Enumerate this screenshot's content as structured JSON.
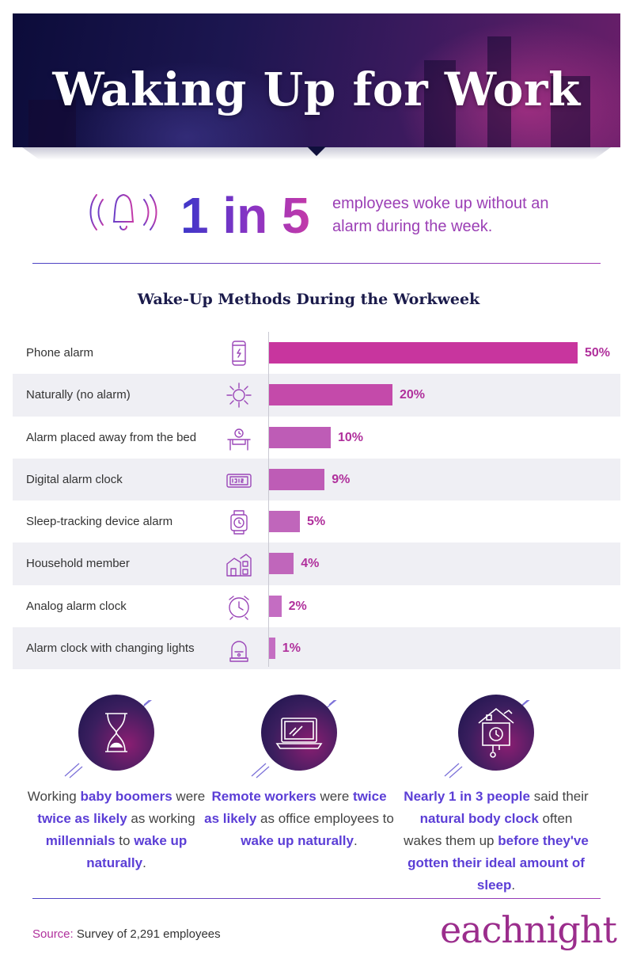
{
  "header": {
    "title": "Waking Up for Work"
  },
  "stat": {
    "big": "1 in 5",
    "text": "employees woke up without an alarm during the week."
  },
  "chart_data": {
    "type": "bar",
    "orientation": "horizontal",
    "title": "Wake-Up Methods During the Workweek",
    "categories": [
      "Phone alarm",
      "Naturally (no alarm)",
      "Alarm placed away from the bed",
      "Digital alarm clock",
      "Sleep-tracking device alarm",
      "Household member",
      "Analog alarm clock",
      "Alarm clock with changing lights"
    ],
    "values": [
      50,
      20,
      10,
      9,
      5,
      4,
      2,
      1
    ],
    "value_labels": [
      "50%",
      "20%",
      "10%",
      "9%",
      "5%",
      "4%",
      "2%",
      "1%"
    ],
    "icons": [
      "phone-icon",
      "sun-icon",
      "desk-alarm-icon",
      "digital-clock-icon",
      "smartwatch-icon",
      "house-icon",
      "analog-clock-icon",
      "light-clock-icon"
    ],
    "colors": [
      "#c8359e",
      "#c44aaa",
      "#be5cb6",
      "#be5cb6",
      "#c066bb",
      "#c066bb",
      "#c46dc2",
      "#c46dc2"
    ],
    "xlim": [
      0,
      50
    ]
  },
  "findings": [
    {
      "parts": [
        {
          "t": "Working ",
          "h": false
        },
        {
          "t": "baby boomers",
          "h": true
        },
        {
          "t": " were ",
          "h": false
        },
        {
          "t": "twice as likely",
          "h": true
        },
        {
          "t": " as working ",
          "h": false
        },
        {
          "t": "millennials",
          "h": true
        },
        {
          "t": " to ",
          "h": false
        },
        {
          "t": "wake up naturally",
          "h": true
        },
        {
          "t": ".",
          "h": false
        }
      ]
    },
    {
      "parts": [
        {
          "t": "Remote workers",
          "h": true
        },
        {
          "t": " were ",
          "h": false
        },
        {
          "t": "twice as likely",
          "h": true
        },
        {
          "t": " as office employees to ",
          "h": false
        },
        {
          "t": "wake up naturally",
          "h": true
        },
        {
          "t": ".",
          "h": false
        }
      ]
    },
    {
      "parts": [
        {
          "t": "Nearly 1 in 3 people",
          "h": true
        },
        {
          "t": " said their ",
          "h": false
        },
        {
          "t": "natural body clock",
          "h": true
        },
        {
          "t": " often wakes them up ",
          "h": false
        },
        {
          "t": "before they've gotten their ideal amount of sleep",
          "h": true
        },
        {
          "t": ".",
          "h": false
        }
      ]
    }
  ],
  "footer": {
    "source_label": "Source:",
    "source_text": "Survey of 2,291 employees",
    "brand": "eachnight"
  }
}
